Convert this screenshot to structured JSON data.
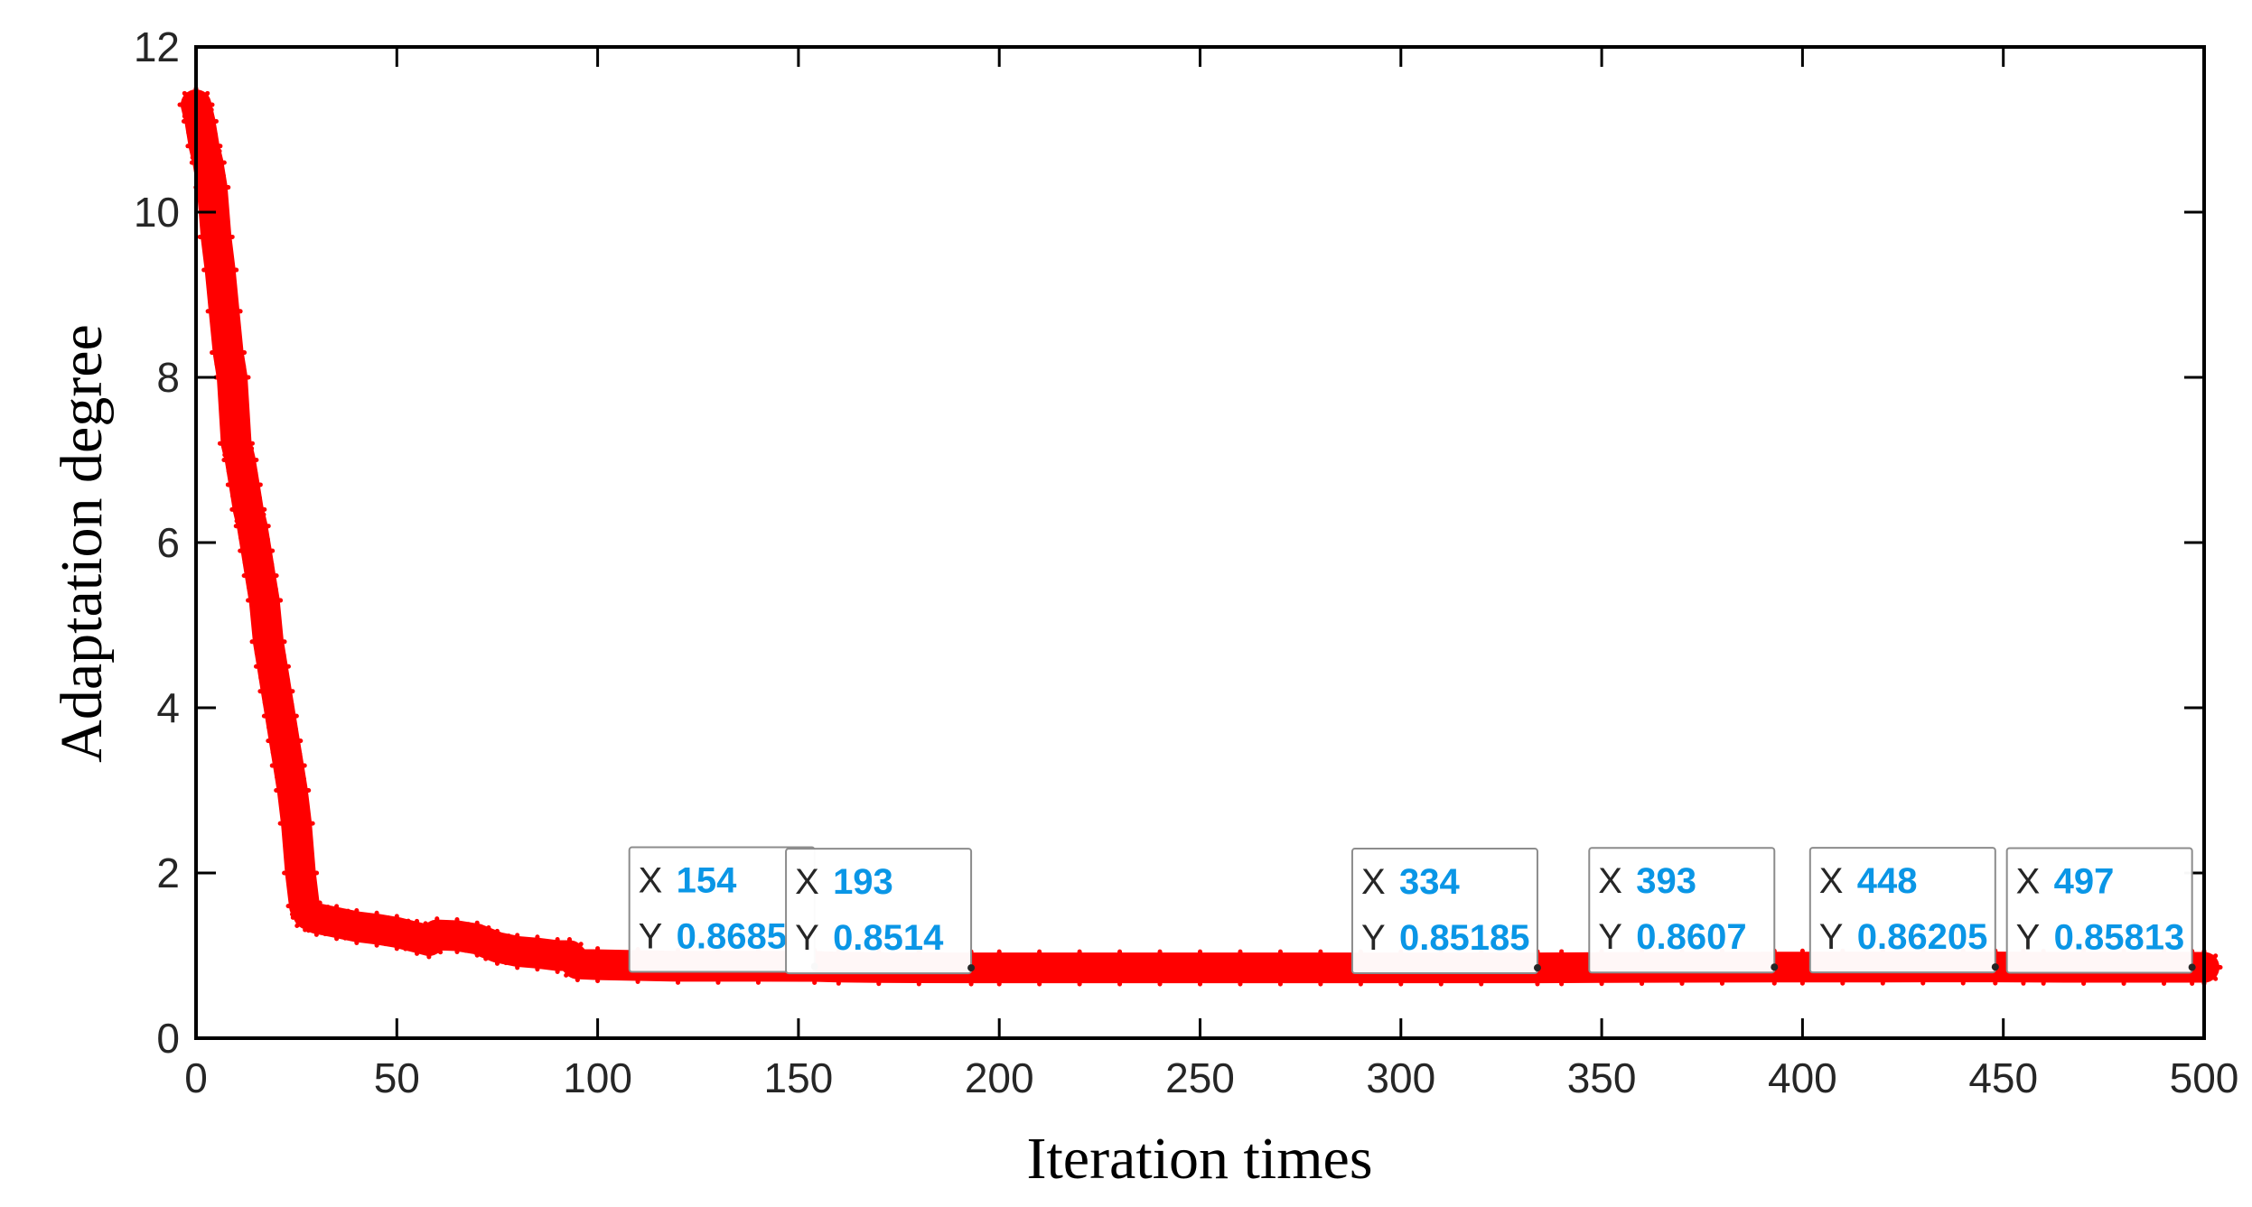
{
  "chart_data": {
    "type": "scatter",
    "title": "",
    "xlabel": "Iteration times",
    "ylabel": "Adaptation degree",
    "xlim": [
      0,
      500
    ],
    "ylim": [
      0,
      12
    ],
    "xticks": [
      0,
      50,
      100,
      150,
      200,
      250,
      300,
      350,
      400,
      450,
      500
    ],
    "yticks": [
      0,
      2,
      4,
      6,
      8,
      10,
      12
    ],
    "grid": false,
    "legend": "none",
    "marker": "asterisk",
    "colors": {
      "series": "#ff0000",
      "datatip_value": "#0a96e6",
      "axis": "#000000"
    },
    "series": [
      {
        "x": [
          0,
          1,
          2,
          3,
          4,
          5,
          6,
          7,
          8,
          9,
          10,
          11,
          12,
          13,
          14,
          15,
          16,
          17,
          18,
          19,
          20,
          21,
          22,
          23,
          24,
          25,
          26,
          27,
          28,
          30,
          35,
          40,
          45,
          50,
          55,
          58,
          60,
          65,
          70,
          75,
          80,
          85,
          90,
          93,
          95,
          100,
          110,
          120,
          130,
          140,
          154,
          160,
          170,
          180,
          193,
          200,
          210,
          220,
          230,
          240,
          250,
          260,
          270,
          280,
          290,
          300,
          310,
          320,
          334,
          340,
          350,
          360,
          370,
          380,
          393,
          400,
          410,
          420,
          430,
          440,
          448,
          455,
          460,
          470,
          480,
          490,
          497,
          500
        ],
        "y": [
          11.3,
          11.1,
          10.8,
          10.6,
          10.3,
          9.7,
          9.3,
          8.8,
          8.3,
          8.0,
          7.2,
          7.0,
          6.7,
          6.4,
          6.2,
          5.9,
          5.6,
          5.3,
          4.8,
          4.5,
          4.2,
          3.9,
          3.6,
          3.3,
          3.0,
          2.6,
          2.0,
          1.6,
          1.5,
          1.45,
          1.4,
          1.35,
          1.32,
          1.28,
          1.22,
          1.18,
          1.25,
          1.24,
          1.2,
          1.1,
          1.05,
          1.03,
          1.0,
          1.0,
          0.9,
          0.89,
          0.88,
          0.87,
          0.87,
          0.87,
          0.8685,
          0.86,
          0.855,
          0.853,
          0.8514,
          0.851,
          0.851,
          0.851,
          0.851,
          0.851,
          0.851,
          0.851,
          0.851,
          0.851,
          0.851,
          0.8515,
          0.8517,
          0.8518,
          0.85185,
          0.853,
          0.855,
          0.857,
          0.858,
          0.859,
          0.8607,
          0.861,
          0.861,
          0.8615,
          0.862,
          0.862,
          0.86205,
          0.86,
          0.859,
          0.858,
          0.858,
          0.858,
          0.85813,
          0.858
        ]
      }
    ],
    "datatips": [
      {
        "x_key": "X",
        "y_key": "Y",
        "x": "154",
        "y": "0.8685"
      },
      {
        "x_key": "X",
        "y_key": "Y",
        "x": "193",
        "y": "0.8514"
      },
      {
        "x_key": "X",
        "y_key": "Y",
        "x": "334",
        "y": "0.85185"
      },
      {
        "x_key": "X",
        "y_key": "Y",
        "x": "393",
        "y": "0.8607"
      },
      {
        "x_key": "X",
        "y_key": "Y",
        "x": "448",
        "y": "0.86205"
      },
      {
        "x_key": "X",
        "y_key": "Y",
        "x": "497",
        "y": "0.85813"
      }
    ]
  }
}
